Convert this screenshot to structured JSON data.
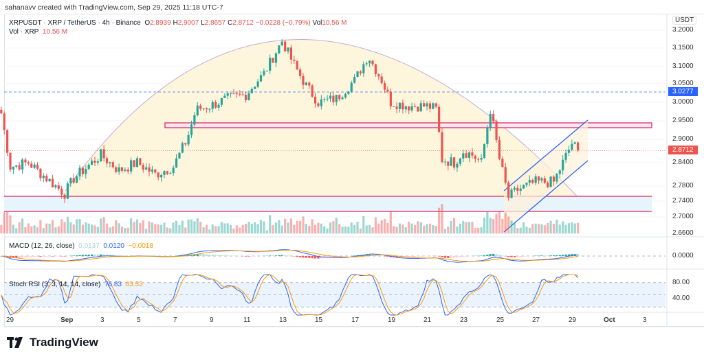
{
  "credit": "sahanavv created with TradingView.com, Sep 29, 2025 11:18 UTC-7",
  "header": {
    "symbol": "XRPUSDT · XRP / TetherUS · 4h · Binance",
    "o_label": "O",
    "o": "2.8939",
    "h_label": "H",
    "h": "2.9007",
    "l_label": "L",
    "l": "2.8657",
    "c_label": "C",
    "c": "2.8712",
    "change": "−0.0228 (−0.79%)",
    "vol_label": "Vol",
    "vol": "10.56 M",
    "vol_line_label": "Vol · XRP",
    "vol_line_value": "10.56 M"
  },
  "axis": {
    "currency": "USDT",
    "price_ticks": [
      "3.2000",
      "3.1500",
      "3.1000",
      "3.0500",
      "3.0000",
      "2.9500",
      "2.9000",
      "2.8400",
      "2.7800",
      "2.7400",
      "2.7000",
      "2.6600"
    ],
    "macd_ticks": [
      "0.0000"
    ],
    "stoch_ticks": [
      "80.00",
      "40.00"
    ],
    "marker_blue": "3.0277",
    "marker_red": "2.8712",
    "date_ticks": [
      "29",
      "Sep",
      "3",
      "5",
      "7",
      "9",
      "11",
      "13",
      "15",
      "17",
      "19",
      "21",
      "23",
      "25",
      "27",
      "29",
      "Oct",
      "3"
    ]
  },
  "macd": {
    "label": "MACD (12, 26, close)",
    "hist": "0.0137",
    "macd": "0.0120",
    "signal": "−0.0018"
  },
  "stoch": {
    "label": "Stoch RSI (3, 3, 14, 14, close)",
    "k": "76.83",
    "d": "83.53"
  },
  "logo": "TradingView",
  "colors": {
    "up": "#26a69a",
    "down": "#ef5350",
    "accent_blue": "#2962ff",
    "zone_pink": "#e0457b",
    "macd_line": "#2962ff",
    "signal_line": "#ff9800"
  },
  "chart_data": {
    "type": "candlestick",
    "scale": "log",
    "approx_close_path": [
      [
        "08-28 12",
        2.97
      ],
      [
        "08-29 00",
        2.83
      ],
      [
        "08-30 00",
        2.84
      ],
      [
        "08-31 00",
        2.8
      ],
      [
        "09-01 00",
        2.76
      ],
      [
        "09-01 12",
        2.8
      ],
      [
        "09-02 00",
        2.82
      ],
      [
        "09-03 00",
        2.86
      ],
      [
        "09-04 00",
        2.82
      ],
      [
        "09-05 00",
        2.84
      ],
      [
        "09-06 00",
        2.81
      ],
      [
        "09-07 00",
        2.83
      ],
      [
        "09-07 18",
        2.9
      ],
      [
        "09-08 06",
        2.98
      ],
      [
        "09-09 00",
        2.99
      ],
      [
        "09-10 00",
        3.01
      ],
      [
        "09-11 00",
        3.02
      ],
      [
        "09-12 00",
        3.08
      ],
      [
        "09-13 00",
        3.17
      ],
      [
        "09-13 12",
        3.12
      ],
      [
        "09-14 06",
        3.05
      ],
      [
        "09-15 00",
        3.0
      ],
      [
        "09-16 00",
        3.01
      ],
      [
        "09-17 00",
        3.06
      ],
      [
        "09-17 18",
        3.13
      ],
      [
        "09-18 12",
        3.06
      ],
      [
        "09-19 00",
        3.0
      ],
      [
        "09-20 00",
        2.99
      ],
      [
        "09-21 00",
        2.99
      ],
      [
        "09-21 14",
        2.98
      ],
      [
        "09-21 18",
        2.85
      ],
      [
        "09-22 12",
        2.84
      ],
      [
        "09-23 00",
        2.87
      ],
      [
        "09-23 12",
        2.86
      ],
      [
        "09-24 00",
        2.84
      ],
      [
        "09-24 12",
        2.98
      ],
      [
        "09-25 00",
        2.85
      ],
      [
        "09-25 12",
        2.75
      ],
      [
        "09-26 00",
        2.77
      ],
      [
        "09-27 00",
        2.79
      ],
      [
        "09-28 00",
        2.79
      ],
      [
        "09-28 12",
        2.84
      ],
      [
        "09-29 00",
        2.89
      ],
      [
        "09-29 08",
        2.8712
      ]
    ]
  }
}
